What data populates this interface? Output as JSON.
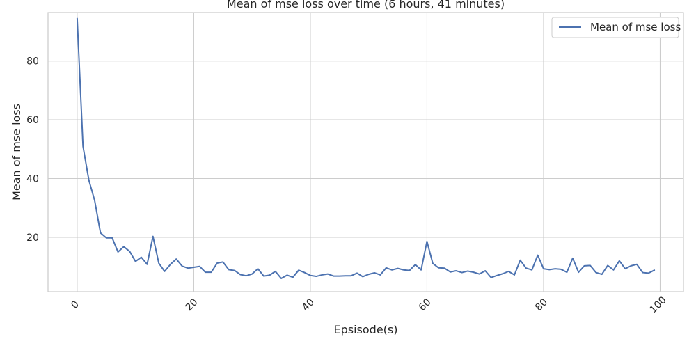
{
  "chart_data": {
    "type": "line",
    "title": "Mean of mse loss over time (6 hours, 41 minutes)",
    "xlabel": "Epsisode(s)",
    "ylabel": "Mean of mse loss",
    "xlim": [
      -5,
      104
    ],
    "ylim": [
      1.5,
      96.5
    ],
    "xticks": [
      0,
      20,
      40,
      60,
      80,
      100
    ],
    "yticks": [
      20,
      40,
      60,
      80
    ],
    "xtick_labels": [
      "0",
      "20",
      "40",
      "60",
      "80",
      "100"
    ],
    "ytick_labels": [
      "20",
      "40",
      "60",
      "80"
    ],
    "grid": true,
    "legend_position": "top-right",
    "series": [
      {
        "name": "Mean of mse loss",
        "color": "#4c72b0",
        "x": [
          0,
          1,
          2,
          3,
          4,
          5,
          6,
          7,
          8,
          9,
          10,
          11,
          12,
          13,
          14,
          15,
          16,
          17,
          18,
          19,
          20,
          21,
          22,
          23,
          24,
          25,
          26,
          27,
          28,
          29,
          30,
          31,
          32,
          33,
          34,
          35,
          36,
          37,
          38,
          39,
          40,
          41,
          42,
          43,
          44,
          45,
          46,
          47,
          48,
          49,
          50,
          51,
          52,
          53,
          54,
          55,
          56,
          57,
          58,
          59,
          60,
          61,
          62,
          63,
          64,
          65,
          66,
          67,
          68,
          69,
          70,
          71,
          72,
          73,
          74,
          75,
          76,
          77,
          78,
          79,
          80,
          81,
          82,
          83,
          84,
          85,
          86,
          87,
          88,
          89,
          90,
          91,
          92,
          93,
          94,
          95,
          96,
          97,
          98,
          99
        ],
        "values": [
          94.5,
          51,
          39.5,
          32.5,
          21.5,
          19.8,
          19.8,
          15,
          16.8,
          15.2,
          11.8,
          13.2,
          10.8,
          20.3,
          11.2,
          8.4,
          10.8,
          12.6,
          10.2,
          9.5,
          9.8,
          10.1,
          8.1,
          8.1,
          11.2,
          11.6,
          9,
          8.7,
          7.3,
          6.9,
          7.5,
          9.3,
          6.8,
          7.1,
          8.4,
          6,
          7.1,
          6.4,
          8.8,
          8,
          7,
          6.7,
          7.2,
          7.5,
          6.8,
          6.8,
          6.9,
          6.9,
          7.8,
          6.6,
          7.4,
          7.9,
          7.2,
          9.6,
          8.9,
          9.4,
          8.9,
          8.7,
          10.7,
          8.9,
          18.6,
          11.1,
          9.6,
          9.5,
          8.2,
          8.6,
          8,
          8.5,
          8.1,
          7.5,
          8.6,
          6.3,
          7,
          7.6,
          8.4,
          7.2,
          12.2,
          9.5,
          8.9,
          13.9,
          9.3,
          9,
          9.3,
          9.1,
          8.1,
          12.9,
          8.1,
          10.3,
          10.4,
          8,
          7.4,
          10.4,
          8.9,
          12,
          9.3,
          10.3,
          10.8,
          8,
          7.8,
          8.8
        ]
      }
    ]
  }
}
